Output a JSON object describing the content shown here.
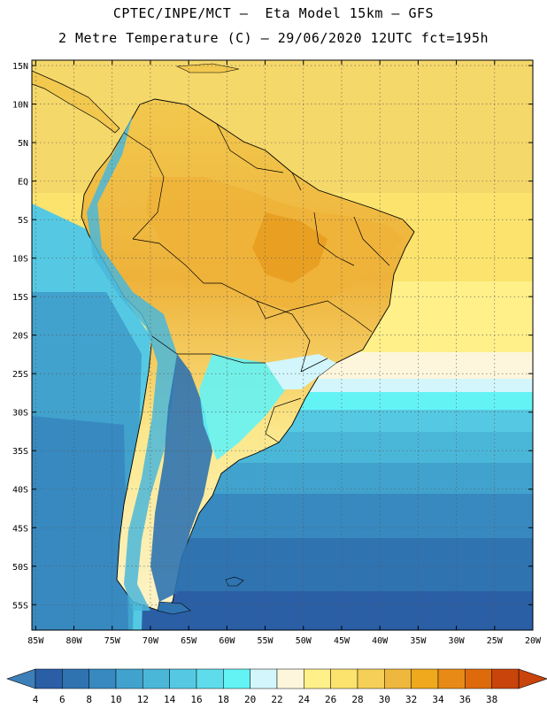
{
  "header": {
    "line1": "CPTEC/INPE/MCT –  Eta Model 15km – GFS",
    "line2": "2 Metre Temperature (C) – 29/06/2020 12UTC fct=195h"
  },
  "map": {
    "lat_labels": [
      "15N",
      "10N",
      "5N",
      "EQ",
      "5S",
      "10S",
      "15S",
      "20S",
      "25S",
      "30S",
      "35S",
      "40S",
      "45S",
      "50S",
      "55S"
    ],
    "lon_labels": [
      "85W",
      "80W",
      "75W",
      "70W",
      "65W",
      "60W",
      "55W",
      "50W",
      "45W",
      "40W",
      "35W",
      "30W",
      "25W",
      "20W"
    ],
    "lat_values": [
      15,
      10,
      5,
      0,
      -5,
      -10,
      -15,
      -20,
      -25,
      -30,
      -35,
      -40,
      -45,
      -50,
      -55
    ],
    "lon_values": [
      -85,
      -80,
      -75,
      -70,
      -65,
      -60,
      -55,
      -50,
      -45,
      -40,
      -35,
      -30,
      -25,
      -20
    ],
    "lat_range": [
      15.7,
      -58.3
    ],
    "lon_range": [
      -85.5,
      -20
    ]
  },
  "colorbar": {
    "labels": [
      "4",
      "6",
      "8",
      "10",
      "12",
      "14",
      "16",
      "18",
      "20",
      "22",
      "24",
      "26",
      "28",
      "30",
      "32",
      "34",
      "36",
      "38"
    ],
    "low_color": "#3d7fb8",
    "high_color": "#c8440a",
    "colors": [
      "#2a5fa6",
      "#2f73b1",
      "#3789c0",
      "#41a2cd",
      "#4ab7d9",
      "#55c9e3",
      "#5fdcec",
      "#64f3f5",
      "#d2f6fb",
      "#fdf6dc",
      "#fff08a",
      "#fbe36d",
      "#f5cf58",
      "#eeb83e",
      "#f0a81c",
      "#e88a16",
      "#de6a0c",
      "#c8440a"
    ]
  }
}
